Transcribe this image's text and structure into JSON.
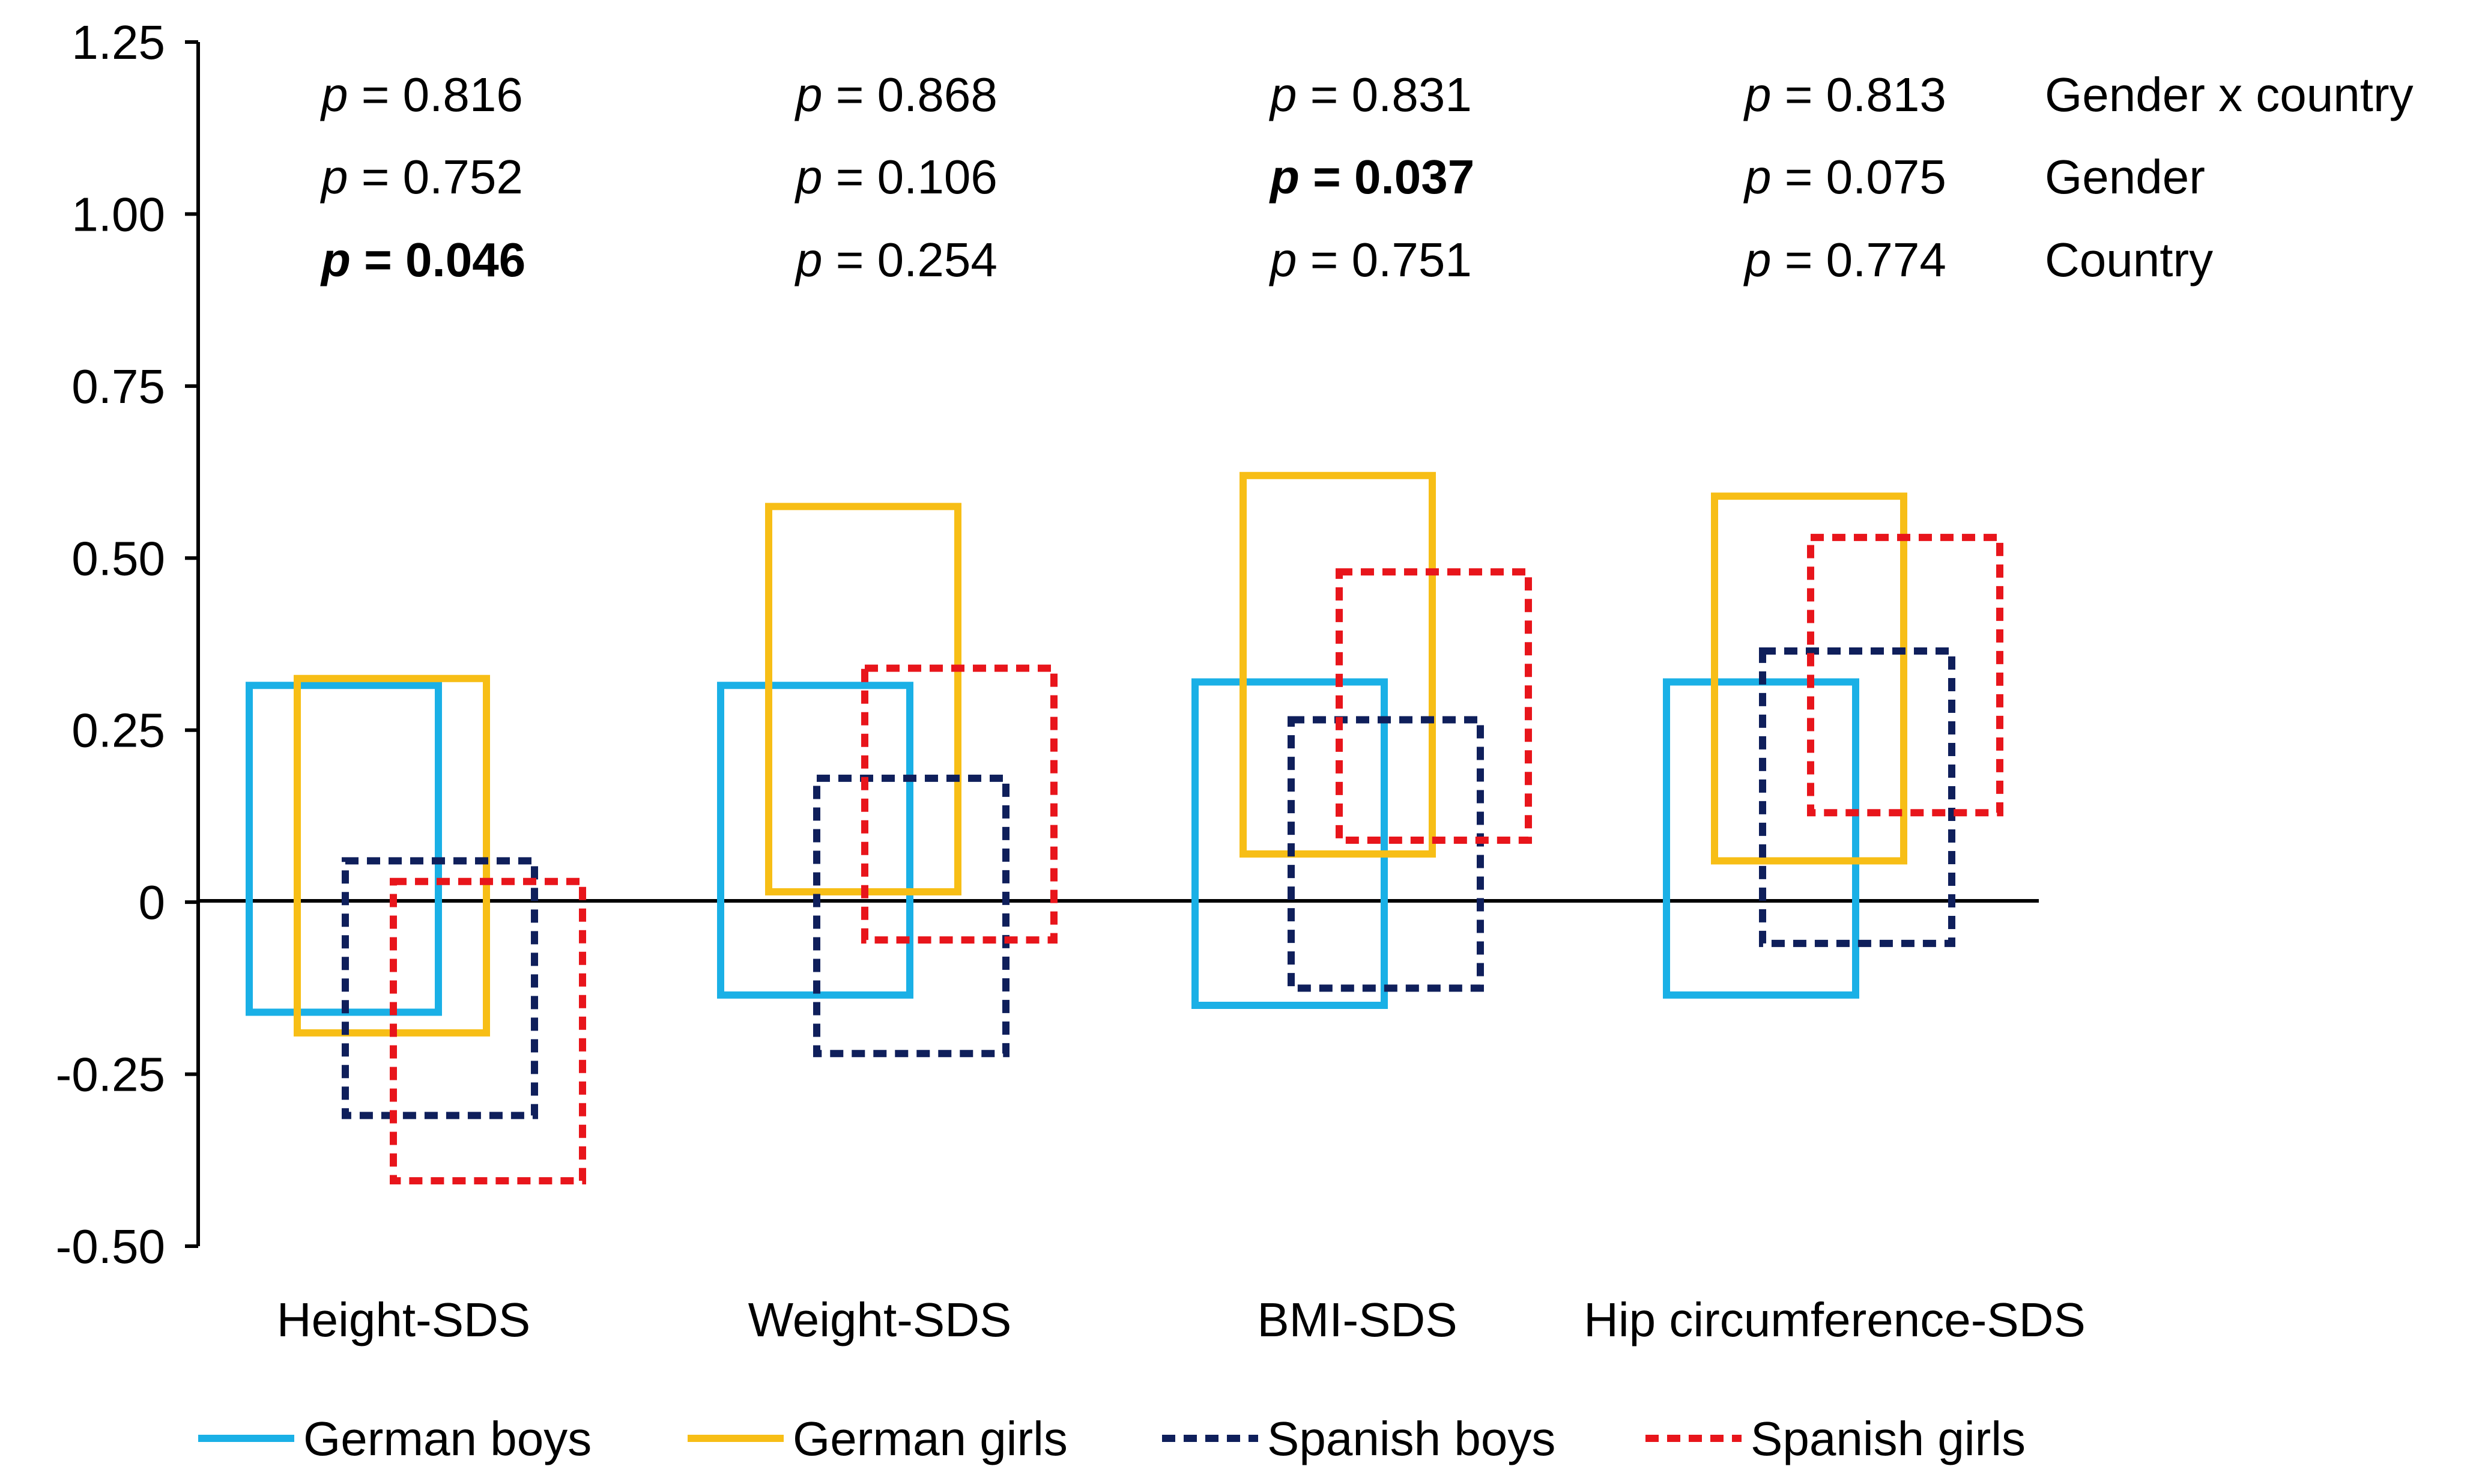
{
  "chart_data": {
    "type": "box-range",
    "title": "",
    "xlabel": "",
    "ylabel": "",
    "ylim": [
      -0.5,
      1.25
    ],
    "yticks": [
      "1.25",
      "1.00",
      "0.75",
      "0.50",
      "0.25",
      "0",
      "-0.25",
      "-0.50"
    ],
    "ytick_values": [
      1.25,
      1.0,
      0.75,
      0.5,
      0.25,
      0,
      -0.25,
      -0.5
    ],
    "categories": [
      "Height-SDS",
      "Weight-SDS",
      "BMI-SDS",
      "Hip circumference-SDS"
    ],
    "series": [
      {
        "name": "German boys",
        "color": "#1AB0E6",
        "style": "solid",
        "ranges": [
          [
            -0.16,
            0.315
          ],
          [
            -0.135,
            0.315
          ],
          [
            -0.15,
            0.32
          ],
          [
            -0.135,
            0.32
          ]
        ]
      },
      {
        "name": "German girls",
        "color": "#F7BE16",
        "style": "solid",
        "ranges": [
          [
            -0.19,
            0.325
          ],
          [
            0.015,
            0.575
          ],
          [
            0.07,
            0.62
          ],
          [
            0.06,
            0.59
          ]
        ]
      },
      {
        "name": "Spanish boys",
        "color": "#0F1F5B",
        "style": "dashed",
        "ranges": [
          [
            -0.31,
            0.06
          ],
          [
            -0.22,
            0.18
          ],
          [
            -0.125,
            0.265
          ],
          [
            -0.06,
            0.365
          ]
        ]
      },
      {
        "name": "Spanish girls",
        "color": "#E8151B",
        "style": "dashed",
        "ranges": [
          [
            -0.405,
            0.03
          ],
          [
            -0.055,
            0.34
          ],
          [
            0.09,
            0.48
          ],
          [
            0.13,
            0.53
          ]
        ]
      }
    ],
    "p_values": {
      "row_labels": [
        "Gender x country",
        "Gender",
        "Country"
      ],
      "rows": [
        [
          {
            "label": "p",
            "text": "= 0.816",
            "bold": false
          },
          {
            "label": "p",
            "text": "= 0.868",
            "bold": false
          },
          {
            "label": "p",
            "text": "= 0.831",
            "bold": false
          },
          {
            "label": "p",
            "text": "= 0.813",
            "bold": false
          }
        ],
        [
          {
            "label": "p",
            "text": "= 0.752",
            "bold": false
          },
          {
            "label": "p",
            "text": "= 0.106",
            "bold": false
          },
          {
            "label": "p",
            "text": "= 0.037",
            "bold": true
          },
          {
            "label": "p",
            "text": "= 0.075",
            "bold": false
          }
        ],
        [
          {
            "label": "p",
            "text": "= 0.046",
            "bold": true
          },
          {
            "label": "p",
            "text": "= 0.254",
            "bold": false
          },
          {
            "label": "p",
            "text": "= 0.751",
            "bold": false
          },
          {
            "label": "p",
            "text": "= 0.774",
            "bold": false
          }
        ]
      ]
    },
    "legend": {
      "placement": "bottom"
    }
  }
}
